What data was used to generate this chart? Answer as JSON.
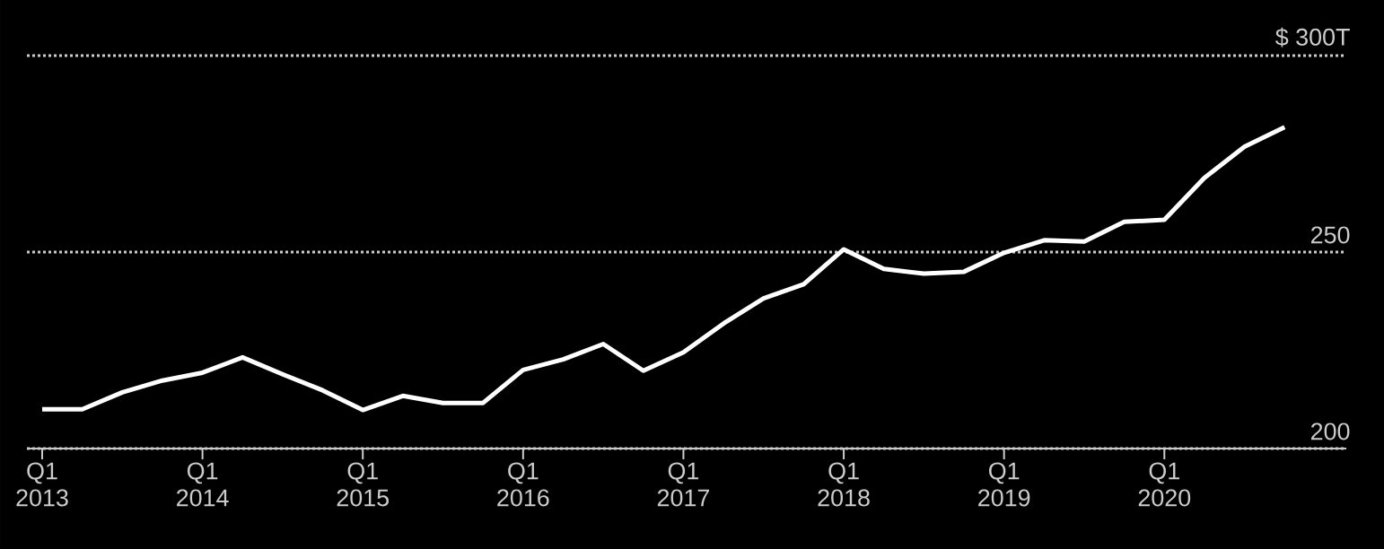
{
  "chart_data": {
    "type": "line",
    "categories": [
      "Q1 2013",
      null,
      null,
      null,
      "Q1 2014",
      null,
      null,
      null,
      "Q1 2015",
      null,
      null,
      null,
      "Q1 2016",
      null,
      null,
      null,
      "Q1 2017",
      null,
      null,
      null,
      "Q1 2018",
      null,
      null,
      null,
      "Q1 2019",
      null,
      null,
      null,
      "Q1 2020",
      null,
      null,
      null
    ],
    "values": [
      210,
      210,
      214.3,
      217.3,
      219.3,
      223.2,
      218.9,
      214.8,
      209.8,
      213.4,
      211.6,
      211.6,
      220,
      222.7,
      226.6,
      219.8,
      224.5,
      231.8,
      238.2,
      241.8,
      250.7,
      245.7,
      244.5,
      245,
      249.8,
      253,
      252.7,
      257.7,
      258.2,
      268.9,
      276.8,
      281.8
    ],
    "color": "#ffffff",
    "ylim": [
      200,
      300
    ],
    "yticks": [
      200,
      250,
      {
        "value": 300,
        "label": "$ 300T"
      }
    ],
    "grid": "y",
    "line_style": "solid",
    "marker": "none"
  }
}
